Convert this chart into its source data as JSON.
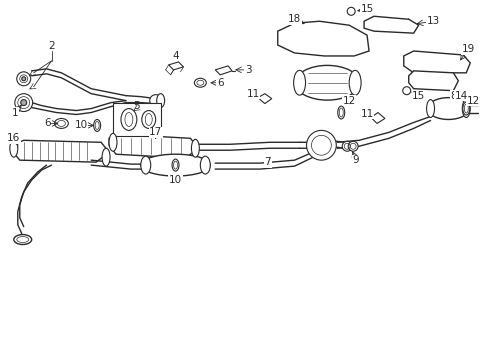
{
  "bg_color": "#ffffff",
  "line_color": "#2a2a2a",
  "fig_width": 4.9,
  "fig_height": 3.6,
  "dpi": 100,
  "font_size": 7.5
}
